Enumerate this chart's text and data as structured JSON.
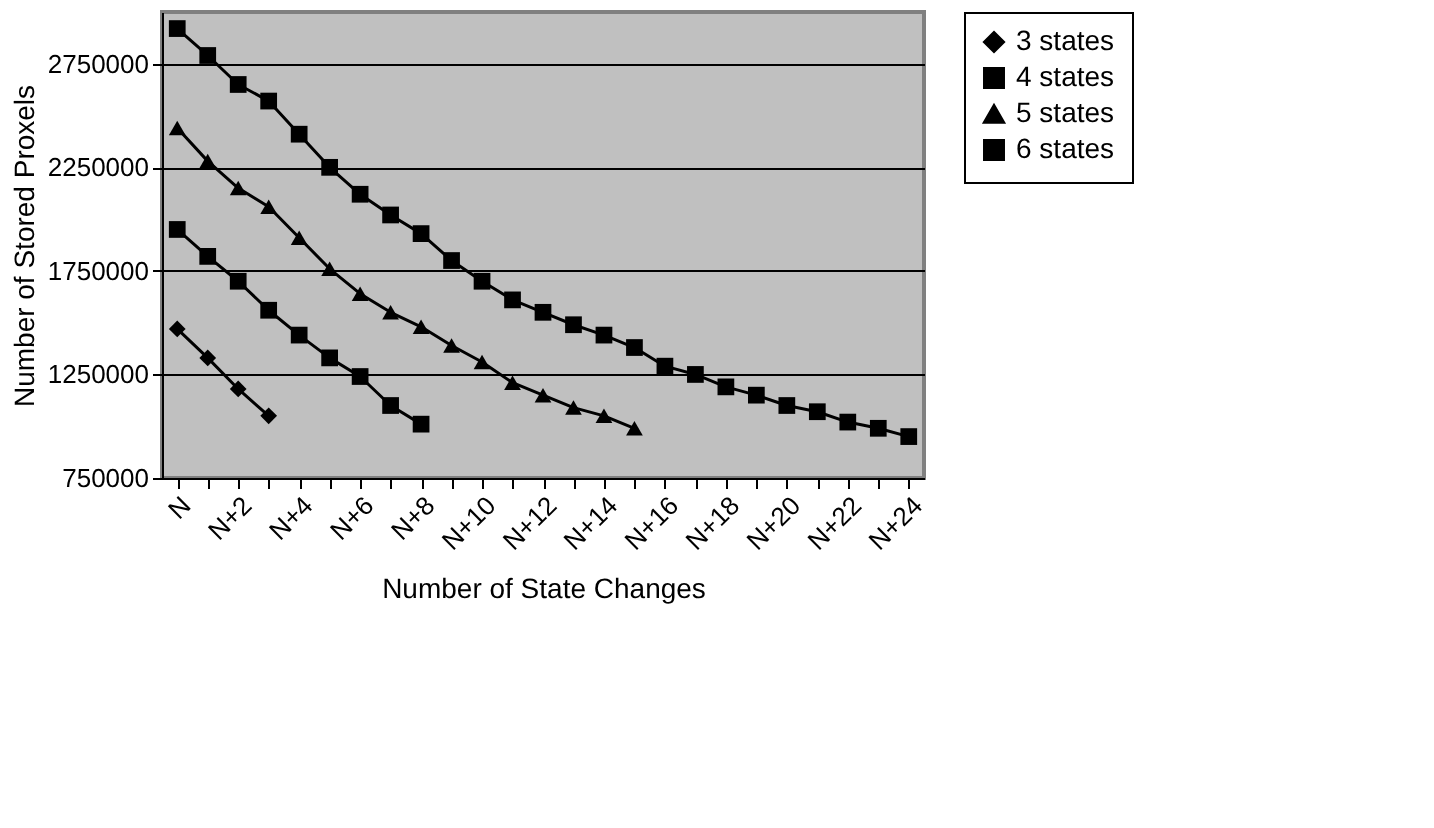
{
  "chart_data": {
    "type": "line",
    "xlabel": "Number of State Changes",
    "ylabel": "Number of Stored Proxels",
    "categories": [
      "N",
      null,
      "N+2",
      null,
      "N+4",
      null,
      "N+6",
      null,
      "N+8",
      null,
      "N+10",
      null,
      "N+12",
      null,
      "N+14",
      null,
      "N+16",
      null,
      "N+18",
      null,
      "N+20",
      null,
      "N+22",
      null,
      "N+24"
    ],
    "ylim": [
      750000,
      3000000
    ],
    "yticks": [
      750000,
      1250000,
      1750000,
      2250000,
      2750000
    ],
    "grid": "y",
    "legend": "right",
    "line_style": "solid",
    "series": [
      {
        "name": "3 states",
        "color": "#000000",
        "marker": "diamond",
        "values": [
          1470000,
          1330000,
          1180000,
          1050000,
          null,
          null,
          null,
          null,
          null,
          null,
          null,
          null,
          null,
          null,
          null,
          null,
          null,
          null,
          null,
          null,
          null,
          null,
          null,
          null,
          null
        ]
      },
      {
        "name": "4 states",
        "color": "#000000",
        "marker": "square",
        "values": [
          1950000,
          1820000,
          1700000,
          1560000,
          1440000,
          1330000,
          1240000,
          1100000,
          1010000,
          null,
          null,
          null,
          null,
          null,
          null,
          null,
          null,
          null,
          null,
          null,
          null,
          null,
          null,
          null,
          null
        ]
      },
      {
        "name": "5 states",
        "color": "#000000",
        "marker": "triangle",
        "values": [
          2440000,
          2280000,
          2150000,
          2060000,
          1910000,
          1760000,
          1640000,
          1550000,
          1480000,
          1390000,
          1310000,
          1210000,
          1150000,
          1090000,
          1050000,
          990000,
          null,
          null,
          null,
          null,
          null,
          null,
          null,
          null,
          null
        ]
      },
      {
        "name": "6 states",
        "color": "#000000",
        "marker": "square",
        "values": [
          2920000,
          2790000,
          2650000,
          2570000,
          2410000,
          2250000,
          2120000,
          2020000,
          1930000,
          1800000,
          1700000,
          1610000,
          1550000,
          1490000,
          1440000,
          1380000,
          1290000,
          1250000,
          1190000,
          1150000,
          1100000,
          1070000,
          1020000,
          990000,
          950000
        ]
      }
    ]
  }
}
